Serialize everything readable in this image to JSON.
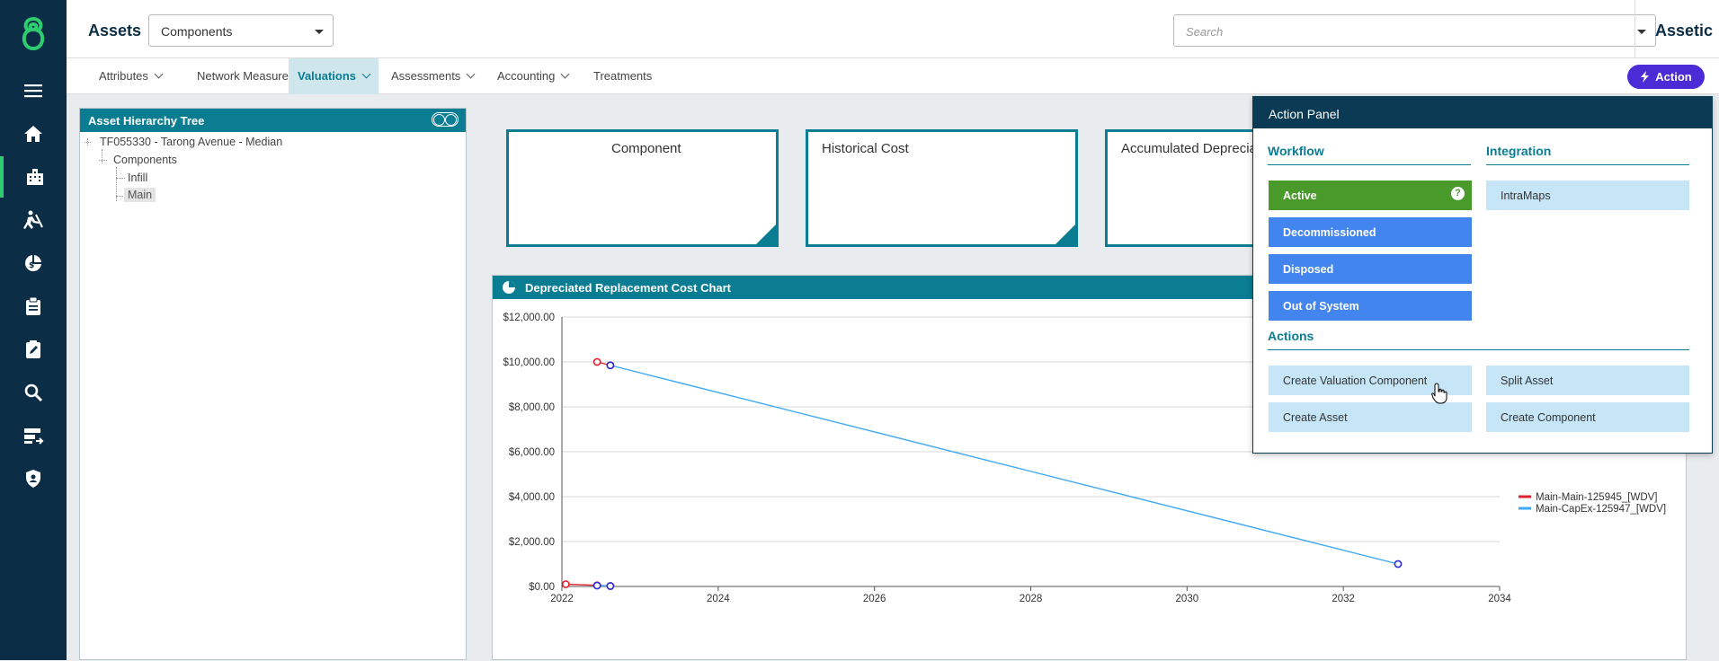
{
  "header": {
    "title": "Assets",
    "component_select": "Components",
    "search_placeholder": "Search",
    "brand": "Assetic"
  },
  "tabs": [
    {
      "label": "Attributes",
      "has_menu": true
    },
    {
      "label": "Network Measure",
      "has_menu": false
    },
    {
      "label": "Valuations",
      "has_menu": true,
      "active": true
    },
    {
      "label": "Assessments",
      "has_menu": true
    },
    {
      "label": "Accounting",
      "has_menu": true
    },
    {
      "label": "Treatments",
      "has_menu": false
    }
  ],
  "action_button": "Action",
  "left_nav_icons": [
    "menu-icon",
    "home-icon",
    "assets-icon",
    "work-icon",
    "finance-icon",
    "clipboard-icon",
    "assessment-icon",
    "search-icon",
    "data-icon",
    "shield-icon"
  ],
  "tree": {
    "title": "Asset Hierarchy Tree",
    "root": "TF055330 - Tarong Avenue - Median",
    "group": "Components",
    "items": [
      "Infill",
      "Main"
    ],
    "selected": "Main"
  },
  "cards": [
    {
      "title": "Component"
    },
    {
      "title": "Historical Cost"
    },
    {
      "title": "Accumulated Depreciat"
    }
  ],
  "chart_panel_title": "Depreciated Replacement Cost Chart",
  "chart_data": {
    "type": "line",
    "title": "",
    "xlabel": "",
    "ylabel": "",
    "xlim": [
      2022,
      2034
    ],
    "ylim": [
      0,
      12000
    ],
    "x_ticks": [
      "2022",
      "2024",
      "2026",
      "2028",
      "2030",
      "2032",
      "2034"
    ],
    "y_ticks": [
      "$0.00",
      "$2,000.00",
      "$4,000.00",
      "$6,000.00",
      "$8,000.00",
      "$10,000.00",
      "$12,000.00"
    ],
    "legend_position": "right",
    "series": [
      {
        "name": "Main-Main-125945_[WDV]",
        "color": "#e0202e",
        "points": [
          [
            2022.45,
            10000
          ],
          [
            2022.62,
            9850
          ]
        ],
        "low_points": [
          [
            2022.05,
            100
          ],
          [
            2022.45,
            50
          ],
          [
            2022.62,
            20
          ]
        ]
      },
      {
        "name": "Main-CapEx-125947_[WDV]",
        "color": "#3fa9f5",
        "points": [
          [
            2022.62,
            9850
          ],
          [
            2032.7,
            1000
          ]
        ],
        "low_points": [
          [
            2022.45,
            40
          ],
          [
            2022.62,
            20
          ]
        ]
      }
    ]
  },
  "action_panel": {
    "title": "Action Panel",
    "workflow_title": "Workflow",
    "integration_title": "Integration",
    "actions_title": "Actions",
    "workflow": [
      "Active",
      "Decommissioned",
      "Disposed",
      "Out of System"
    ],
    "integration": [
      "IntraMaps"
    ],
    "actions": [
      "Create Valuation Component",
      "Split Asset",
      "Create Asset",
      "Create Component"
    ],
    "colors": {
      "active": "#4a9a2b",
      "workflow": "#4285ee",
      "light": "#c6e6f8",
      "header": "#0b3a55"
    }
  }
}
